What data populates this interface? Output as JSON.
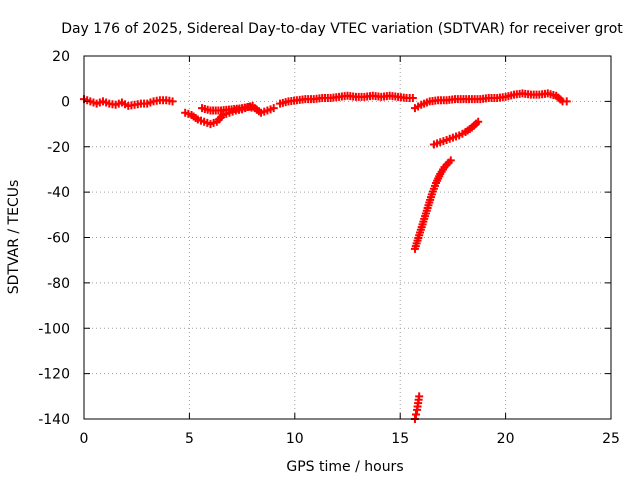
{
  "chart_data": {
    "type": "scatter",
    "title": "Day 176 of 2025, Sidereal Day-to-day VTEC variation (SDTVAR) for receiver grot",
    "xlabel": "GPS time / hours",
    "ylabel": "SDTVAR / TECUs",
    "xlim": [
      0,
      25
    ],
    "ylim": [
      -140,
      20
    ],
    "x_ticks": [
      0,
      5,
      10,
      15,
      20,
      25
    ],
    "y_ticks": [
      20,
      0,
      -20,
      -40,
      -60,
      -80,
      -100,
      -120,
      -140
    ],
    "x_tick_labels": [
      "0",
      "5",
      "10",
      "15",
      "20",
      "25"
    ],
    "y_tick_labels": [
      "20",
      "0",
      "-20",
      "-40",
      "-60",
      "-80",
      "-100",
      "-120",
      "-140"
    ],
    "grid": true,
    "marker": "plus",
    "series_color": "#ff0000",
    "series": [
      {
        "x": [
          0.0,
          0.3,
          0.6,
          0.9,
          1.2,
          1.5,
          1.8,
          2.1,
          2.4,
          2.7,
          3.0,
          3.3,
          3.6,
          3.9,
          4.2
        ],
        "y": [
          1.0,
          0.0,
          -1.0,
          0.0,
          -1.0,
          -1.5,
          -0.5,
          -2.0,
          -1.5,
          -1.0,
          -1.0,
          0.0,
          0.5,
          0.5,
          0.0
        ]
      },
      {
        "x": [
          4.8,
          5.1,
          5.4,
          5.7,
          6.0,
          6.3,
          6.6,
          6.9,
          7.2,
          7.5,
          7.8,
          8.1,
          8.4,
          8.7,
          9.0
        ],
        "y": [
          -5.0,
          -6.0,
          -8.0,
          -9.0,
          -10.0,
          -9.0,
          -6.0,
          -5.0,
          -4.0,
          -3.5,
          -2.5,
          -3.0,
          -5.0,
          -4.0,
          -3.0
        ]
      },
      {
        "x": [
          5.6,
          6.0,
          6.5,
          7.0,
          7.5,
          8.0
        ],
        "y": [
          -3.0,
          -4.0,
          -4.0,
          -3.5,
          -3.0,
          -2.0
        ]
      },
      {
        "x": [
          9.3,
          9.7,
          10.1,
          10.5,
          10.9,
          11.3,
          11.7,
          12.1,
          12.5,
          12.9,
          13.3,
          13.7,
          14.1,
          14.5,
          14.9,
          15.3,
          15.6
        ],
        "y": [
          -1.0,
          0.0,
          0.5,
          1.0,
          1.0,
          1.5,
          1.5,
          2.0,
          2.5,
          2.0,
          2.0,
          2.5,
          2.0,
          2.5,
          2.0,
          1.5,
          1.5
        ]
      },
      {
        "x": [
          15.7,
          16.0,
          16.4,
          16.8,
          17.2,
          17.6,
          18.0,
          18.4,
          18.8,
          19.2,
          19.6,
          20.0,
          20.4,
          20.8,
          21.2,
          21.6,
          22.0,
          22.4,
          22.7,
          22.9
        ],
        "y": [
          -3.0,
          -1.5,
          0.0,
          0.5,
          0.5,
          1.0,
          1.0,
          1.0,
          1.0,
          1.5,
          1.5,
          2.0,
          3.0,
          3.5,
          3.0,
          3.0,
          3.5,
          2.5,
          0.0,
          0.0
        ]
      },
      {
        "x": [
          16.6,
          16.9,
          17.2,
          17.5,
          17.8,
          18.1,
          18.4,
          18.7
        ],
        "y": [
          -19.0,
          -18.0,
          -17.0,
          -16.0,
          -15.0,
          -13.5,
          -11.5,
          -9.0
        ]
      },
      {
        "x": [
          15.7,
          15.9,
          16.1,
          16.3,
          16.5,
          16.7,
          16.9,
          17.1,
          17.3,
          17.4
        ],
        "y": [
          -65.0,
          -59.0,
          -53.0,
          -47.0,
          -41.0,
          -36.0,
          -32.0,
          -29.0,
          -27.0,
          -26.0
        ]
      },
      {
        "x": [
          15.7,
          15.75,
          15.8,
          15.85,
          15.9
        ],
        "y": [
          -140.0,
          -138.0,
          -136.0,
          -133.0,
          -130.0
        ]
      }
    ]
  }
}
